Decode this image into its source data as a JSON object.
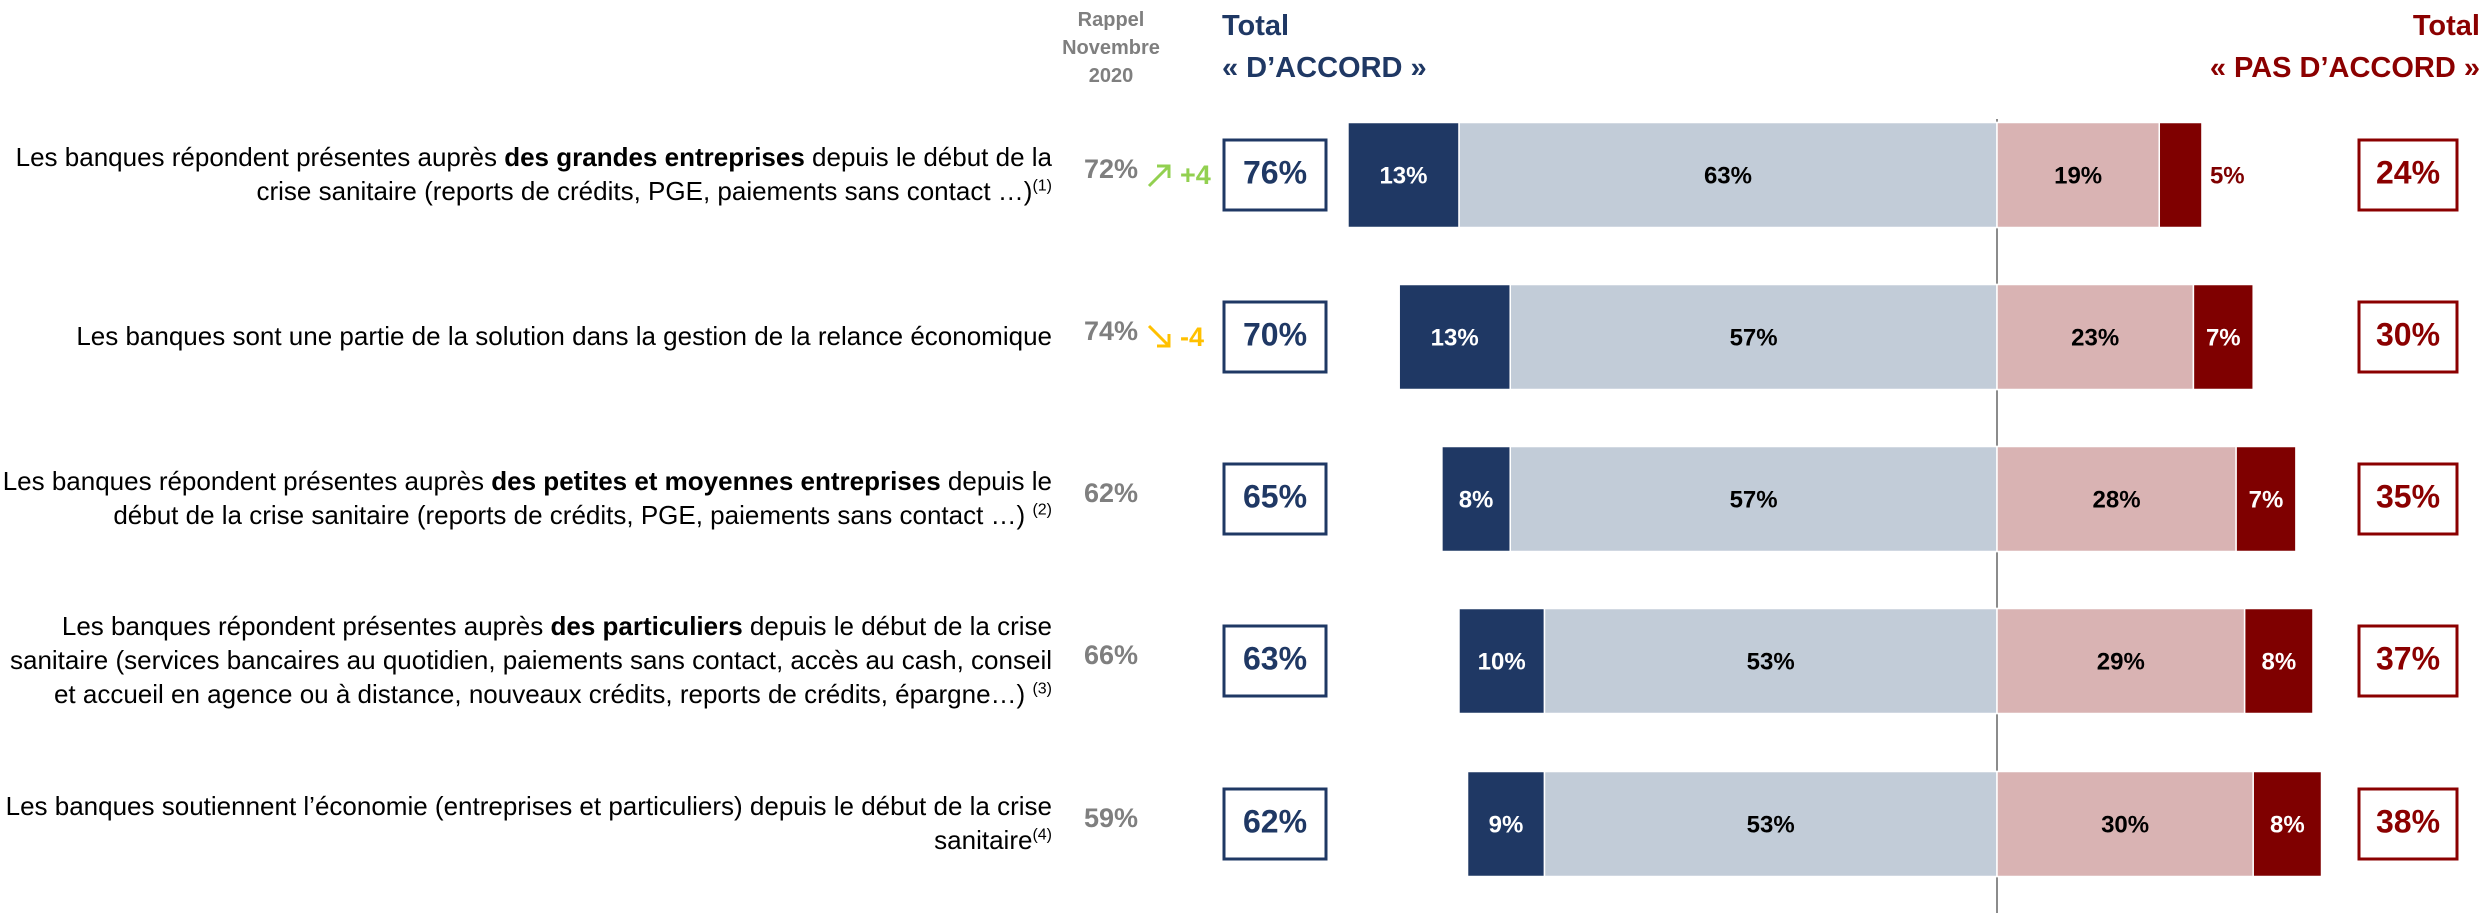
{
  "chart_data": {
    "type": "diverging_bar",
    "header": {
      "recall": [
        "Rappel",
        "Novembre",
        "2020"
      ],
      "agree_total": "Total",
      "agree": "« D’ACCORD »",
      "disagree_total": "Total",
      "disagree": "« PAS D’ACCORD »"
    },
    "statements": [
      {
        "parts": [
          "Les banques répondent présentes auprès ",
          "des grandes entreprises",
          " depuis le début de la crise sanitaire (reports de crédits, PGE, paiements sans contact …)"
        ],
        "note": "(1)"
      },
      {
        "parts": [
          "Les banques sont une partie de la solution dans la gestion de la relance économique"
        ],
        "note": null
      },
      {
        "parts": [
          "Les banques répondent présentes auprès ",
          "des petites et moyennes entreprises",
          " depuis le début de la crise sanitaire (reports de crédits, PGE, paiements sans contact …) "
        ],
        "note": "(2)"
      },
      {
        "parts": [
          "Les banques répondent présentes auprès ",
          "des particuliers",
          " depuis le début de la crise sanitaire (services bancaires au quotidien, paiements sans contact, accès au cash, conseil et accueil en agence ou à distance, nouveaux crédits, reports de crédits, épargne…) "
        ],
        "note": "(3)"
      },
      {
        "parts": [
          "Les banques soutiennent l’économie (entreprises et particuliers) depuis le début de la crise sanitaire"
        ],
        "note": "(4)"
      }
    ],
    "recall": {
      "values": [
        72,
        74,
        62,
        66,
        59
      ],
      "value_labels": [
        "72%",
        "74%",
        "62%",
        "66%",
        "59%"
      ],
      "color": "#7f7f7f"
    },
    "change": {
      "values": [
        4,
        -4,
        null,
        null,
        null
      ],
      "value_labels": [
        "+4",
        "-4",
        null,
        null,
        null
      ],
      "up_color": "#92d050",
      "down_color": "#ffc000"
    },
    "total_agree": {
      "values": [
        76,
        70,
        65,
        63,
        62
      ],
      "value_labels": [
        "76%",
        "70%",
        "65%",
        "63%",
        "62%"
      ],
      "color": "#1f3864"
    },
    "total_disagree": {
      "values": [
        24,
        30,
        35,
        37,
        38
      ],
      "value_labels": [
        "24%",
        "30%",
        "35%",
        "37%",
        "38%"
      ],
      "color": "#8b0000"
    },
    "series": [
      {
        "side": "left",
        "color": "#1f3864",
        "text_color": "#ffffff",
        "values": [
          13,
          13,
          8,
          10,
          9
        ],
        "value_labels": [
          "13%",
          "13%",
          "8%",
          "10%",
          "9%"
        ]
      },
      {
        "side": "left",
        "color": "#c2ccd8",
        "text_color": "#000000",
        "values": [
          63,
          57,
          57,
          53,
          53
        ],
        "value_labels": [
          "63%",
          "57%",
          "57%",
          "53%",
          "53%"
        ]
      },
      {
        "side": "right",
        "color": "#d9b3b3",
        "text_color": "#000000",
        "values": [
          19,
          23,
          28,
          29,
          30
        ],
        "value_labels": [
          "19%",
          "23%",
          "28%",
          "29%",
          "30%"
        ]
      },
      {
        "side": "right",
        "color": "#7f0000",
        "text_color": "#ffffff",
        "values": [
          5,
          7,
          7,
          8,
          8
        ],
        "value_labels": [
          "5%",
          "7%",
          "7%",
          "8%",
          "8%"
        ]
      }
    ]
  }
}
